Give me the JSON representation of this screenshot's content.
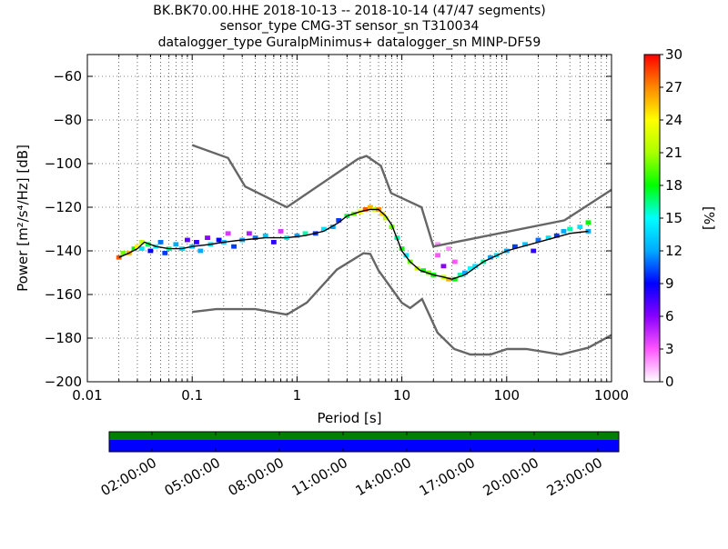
{
  "chart_data": {
    "type": "heatmap",
    "title_lines": [
      "BK.BK70.00.HHE   2018-10-13 -- 2018-10-14  (47/47 segments)",
      "sensor_type CMG-3T sensor_sn T310034",
      "datalogger_type GuralpMinimus+ datalogger_sn MINP-DF59"
    ],
    "xlabel": "Period [s]",
    "ylabel": "Power [m²/s⁴/Hz] [dB]",
    "xscale": "log",
    "xlim": [
      0.01,
      1000
    ],
    "ylim": [
      -200,
      -50
    ],
    "x_ticks": [
      {
        "v": 0.01,
        "label": "0.01"
      },
      {
        "v": 0.1,
        "label": "0.1"
      },
      {
        "v": 1,
        "label": "1"
      },
      {
        "v": 10,
        "label": "10"
      },
      {
        "v": 100,
        "label": "100"
      },
      {
        "v": 1000,
        "label": "1000"
      }
    ],
    "y_ticks": [
      {
        "v": -60,
        "label": "−60"
      },
      {
        "v": -80,
        "label": "−80"
      },
      {
        "v": -100,
        "label": "−100"
      },
      {
        "v": -120,
        "label": "−120"
      },
      {
        "v": -140,
        "label": "−140"
      },
      {
        "v": -160,
        "label": "−160"
      },
      {
        "v": -180,
        "label": "−180"
      },
      {
        "v": -200,
        "label": "−200"
      }
    ],
    "grid": "dotted",
    "colorbar": {
      "label": "[%]",
      "min": 0,
      "max": 30,
      "ticks": [
        {
          "v": 0,
          "label": "0"
        },
        {
          "v": 3,
          "label": "3"
        },
        {
          "v": 6,
          "label": "6"
        },
        {
          "v": 9,
          "label": "9"
        },
        {
          "v": 12,
          "label": "12"
        },
        {
          "v": 15,
          "label": "15"
        },
        {
          "v": 18,
          "label": "18"
        },
        {
          "v": 21,
          "label": "21"
        },
        {
          "v": 24,
          "label": "24"
        },
        {
          "v": 27,
          "label": "27"
        },
        {
          "v": 30,
          "label": "30"
        }
      ],
      "colors": [
        "#ffffff",
        "#ff55ff",
        "#8800ff",
        "#0000ff",
        "#00aaff",
        "#00ffff",
        "#00ff00",
        "#aaff00",
        "#ffff00",
        "#ff8800",
        "#ff0000"
      ]
    },
    "noise_models": [
      {
        "x": [
          0.1,
          0.17,
          0.4,
          0.8,
          1.24,
          2.4,
          4.3,
          5,
          6,
          10,
          12,
          15.6,
          21.9,
          31.6,
          45,
          70,
          101,
          154,
          328,
          600,
          1000
        ],
        "y": [
          -168,
          -166.7,
          -166.7,
          -169.2,
          -163.7,
          -148.6,
          -141.1,
          -141.4,
          -149,
          -163.8,
          -166.2,
          -162.1,
          -177.5,
          -185,
          -187.5,
          -187.5,
          -185,
          -185,
          -187.5,
          -184.4,
          -178.6
        ]
      },
      {
        "x": [
          0.1,
          0.22,
          0.32,
          0.8,
          3.8,
          4.6,
          6.3,
          7.9,
          15.4,
          20,
          354.8,
          1000
        ],
        "y": [
          -91.5,
          -97.4,
          -110.5,
          -120,
          -97.9,
          -96.5,
          -101,
          -113.5,
          -120,
          -138,
          -126,
          -112
        ]
      }
    ],
    "mode_curve": {
      "x": [
        0.02,
        0.025,
        0.03,
        0.035,
        0.045,
        0.06,
        0.08,
        0.1,
        0.15,
        0.2,
        0.3,
        0.5,
        0.8,
        1.2,
        1.8,
        2.5,
        3,
        4,
        5,
        6,
        7,
        8,
        10,
        12,
        15,
        20,
        25,
        30,
        40,
        60,
        100,
        200,
        400,
        600
      ],
      "y": [
        -143,
        -141,
        -139,
        -136,
        -138,
        -139,
        -139,
        -138,
        -137,
        -136,
        -135,
        -134,
        -134,
        -133,
        -131,
        -127,
        -124,
        -122,
        -121,
        -121,
        -124,
        -128,
        -140,
        -145,
        -149,
        -151,
        -152,
        -153,
        -151,
        -145,
        -140,
        -136,
        -132,
        -131
      ]
    },
    "histogram_cells": [
      {
        "x": 0.02,
        "y": -143,
        "p": 28
      },
      {
        "x": 0.022,
        "y": -141,
        "p": 20
      },
      {
        "x": 0.025,
        "y": -141,
        "p": 26
      },
      {
        "x": 0.028,
        "y": -139,
        "p": 18
      },
      {
        "x": 0.03,
        "y": -138,
        "p": 24
      },
      {
        "x": 0.033,
        "y": -136,
        "p": 22
      },
      {
        "x": 0.033,
        "y": -139,
        "p": 14
      },
      {
        "x": 0.038,
        "y": -137,
        "p": 17
      },
      {
        "x": 0.04,
        "y": -140,
        "p": 9
      },
      {
        "x": 0.045,
        "y": -138,
        "p": 15
      },
      {
        "x": 0.05,
        "y": -136,
        "p": 11
      },
      {
        "x": 0.055,
        "y": -141,
        "p": 10
      },
      {
        "x": 0.06,
        "y": -139,
        "p": 16
      },
      {
        "x": 0.07,
        "y": -137,
        "p": 12
      },
      {
        "x": 0.08,
        "y": -139,
        "p": 14
      },
      {
        "x": 0.09,
        "y": -135,
        "p": 7
      },
      {
        "x": 0.1,
        "y": -138,
        "p": 13
      },
      {
        "x": 0.11,
        "y": -136,
        "p": 8
      },
      {
        "x": 0.12,
        "y": -140,
        "p": 12
      },
      {
        "x": 0.14,
        "y": -134,
        "p": 6
      },
      {
        "x": 0.15,
        "y": -137,
        "p": 14
      },
      {
        "x": 0.18,
        "y": -135,
        "p": 9
      },
      {
        "x": 0.2,
        "y": -136,
        "p": 13
      },
      {
        "x": 0.22,
        "y": -132,
        "p": 4
      },
      {
        "x": 0.25,
        "y": -138,
        "p": 10
      },
      {
        "x": 0.3,
        "y": -135,
        "p": 12
      },
      {
        "x": 0.35,
        "y": -132,
        "p": 5
      },
      {
        "x": 0.4,
        "y": -134,
        "p": 11
      },
      {
        "x": 0.5,
        "y": -133,
        "p": 13
      },
      {
        "x": 0.6,
        "y": -136,
        "p": 8
      },
      {
        "x": 0.7,
        "y": -131,
        "p": 4
      },
      {
        "x": 0.8,
        "y": -134,
        "p": 15
      },
      {
        "x": 1.0,
        "y": -133,
        "p": 12
      },
      {
        "x": 1.2,
        "y": -132,
        "p": 16
      },
      {
        "x": 1.5,
        "y": -132,
        "p": 10
      },
      {
        "x": 1.8,
        "y": -130,
        "p": 14
      },
      {
        "x": 2.2,
        "y": -129,
        "p": 12
      },
      {
        "x": 2.5,
        "y": -126,
        "p": 10
      },
      {
        "x": 3.0,
        "y": -124,
        "p": 17
      },
      {
        "x": 3.5,
        "y": -123,
        "p": 20
      },
      {
        "x": 4.0,
        "y": -122,
        "p": 24
      },
      {
        "x": 4.5,
        "y": -121,
        "p": 28
      },
      {
        "x": 5.0,
        "y": -120,
        "p": 26
      },
      {
        "x": 5.5,
        "y": -121,
        "p": 22
      },
      {
        "x": 6.0,
        "y": -121,
        "p": 27
      },
      {
        "x": 6.5,
        "y": -123,
        "p": 25
      },
      {
        "x": 7.0,
        "y": -125,
        "p": 22
      },
      {
        "x": 8.0,
        "y": -129,
        "p": 20
      },
      {
        "x": 9.0,
        "y": -134,
        "p": 16
      },
      {
        "x": 10.0,
        "y": -139,
        "p": 18
      },
      {
        "x": 11.0,
        "y": -142,
        "p": 14
      },
      {
        "x": 12.0,
        "y": -145,
        "p": 20
      },
      {
        "x": 14.0,
        "y": -148,
        "p": 22
      },
      {
        "x": 16.0,
        "y": -149,
        "p": 18
      },
      {
        "x": 18.0,
        "y": -150,
        "p": 20
      },
      {
        "x": 20.0,
        "y": -151,
        "p": 18
      },
      {
        "x": 22.0,
        "y": -137,
        "p": 2
      },
      {
        "x": 22.0,
        "y": -142,
        "p": 3
      },
      {
        "x": 25.0,
        "y": -152,
        "p": 22
      },
      {
        "x": 25.0,
        "y": -147,
        "p": 6
      },
      {
        "x": 28.0,
        "y": -153,
        "p": 26
      },
      {
        "x": 28.0,
        "y": -139,
        "p": 2
      },
      {
        "x": 32.0,
        "y": -153,
        "p": 18
      },
      {
        "x": 32.0,
        "y": -145,
        "p": 3
      },
      {
        "x": 36.0,
        "y": -151,
        "p": 16
      },
      {
        "x": 40.0,
        "y": -150,
        "p": 12
      },
      {
        "x": 45.0,
        "y": -148,
        "p": 15
      },
      {
        "x": 50.0,
        "y": -147,
        "p": 14
      },
      {
        "x": 60.0,
        "y": -145,
        "p": 16
      },
      {
        "x": 70.0,
        "y": -143,
        "p": 12
      },
      {
        "x": 80.0,
        "y": -142,
        "p": 14
      },
      {
        "x": 100.0,
        "y": -140,
        "p": 12
      },
      {
        "x": 120.0,
        "y": -138,
        "p": 10
      },
      {
        "x": 150.0,
        "y": -137,
        "p": 13
      },
      {
        "x": 180.0,
        "y": -140,
        "p": 8
      },
      {
        "x": 200.0,
        "y": -135,
        "p": 11
      },
      {
        "x": 250.0,
        "y": -134,
        "p": 14
      },
      {
        "x": 300.0,
        "y": -133,
        "p": 10
      },
      {
        "x": 350.0,
        "y": -131,
        "p": 12
      },
      {
        "x": 400.0,
        "y": -130,
        "p": 16
      },
      {
        "x": 500.0,
        "y": -129,
        "p": 14
      },
      {
        "x": 600.0,
        "y": -131,
        "p": 12
      },
      {
        "x": 600.0,
        "y": -127,
        "p": 18
      }
    ]
  },
  "timeline": {
    "tick_labels": [
      "02:00:00",
      "05:00:00",
      "08:00:00",
      "11:00:00",
      "14:00:00",
      "17:00:00",
      "20:00:00",
      "23:00:00"
    ],
    "colors": {
      "top": "#008000",
      "bottom": "#0000ff"
    }
  }
}
